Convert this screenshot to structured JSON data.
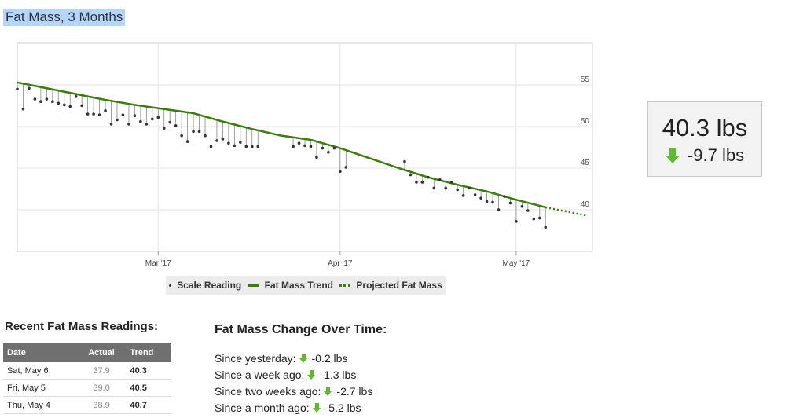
{
  "page": {
    "title": "Fat Mass, 3 Months"
  },
  "stat": {
    "value": "40.3 lbs",
    "change": "-9.7 lbs",
    "direction": "down"
  },
  "legend": {
    "scale_reading": "Scale Reading",
    "trend": "Fat Mass Trend",
    "projected": "Projected Fat Mass"
  },
  "recent": {
    "title": "Recent Fat Mass Readings:",
    "columns": [
      "Date",
      "Actual",
      "Trend"
    ],
    "rows": [
      {
        "date": "Sat, May 6",
        "actual": "37.9",
        "trend": "40.3"
      },
      {
        "date": "Fri, May 5",
        "actual": "39.0",
        "trend": "40.5"
      },
      {
        "date": "Thu, May 4",
        "actual": "38.9",
        "trend": "40.7"
      }
    ]
  },
  "change": {
    "title": "Fat Mass Change Over Time:",
    "items": [
      {
        "label": "Since yesterday:",
        "value": "-0.2 lbs"
      },
      {
        "label": "Since a week ago:",
        "value": "-1.3 lbs"
      },
      {
        "label": "Since two weeks ago:",
        "value": "-2.7 lbs"
      },
      {
        "label": "Since a month ago:",
        "value": "-5.2 lbs"
      }
    ]
  },
  "colors": {
    "trend": "#3a7d0a",
    "arrow_down": "#5fb82f",
    "card_bg": "#f3f3f3",
    "readings": "#333333"
  },
  "chart_data": {
    "type": "line",
    "title": "Fat Mass, 3 Months",
    "xlabel": "",
    "ylabel": "",
    "x_ticks": [
      "Mar '17",
      "Apr '17",
      "May '17"
    ],
    "y_ticks": [
      40,
      45,
      50,
      55
    ],
    "ylim": [
      35,
      60
    ],
    "xlim": [
      "2017-02-05",
      "2017-05-14"
    ],
    "grid": true,
    "legend_position": "bottom",
    "series": [
      {
        "name": "Fat Mass Trend",
        "style": "solid",
        "x": [
          "2017-02-05",
          "2017-02-10",
          "2017-02-15",
          "2017-02-20",
          "2017-02-25",
          "2017-03-02",
          "2017-03-07",
          "2017-03-12",
          "2017-03-17",
          "2017-03-22",
          "2017-03-27",
          "2017-04-01",
          "2017-04-06",
          "2017-04-11",
          "2017-04-16",
          "2017-04-21",
          "2017-04-26",
          "2017-05-01",
          "2017-05-06"
        ],
        "values": [
          55.3,
          54.6,
          53.9,
          53.2,
          52.6,
          52.1,
          51.6,
          50.6,
          49.7,
          48.9,
          48.4,
          47.4,
          46.2,
          45.0,
          43.9,
          43.0,
          42.2,
          41.2,
          40.3
        ]
      },
      {
        "name": "Projected Fat Mass",
        "style": "dotted",
        "x": [
          "2017-05-06",
          "2017-05-13"
        ],
        "values": [
          40.3,
          39.3
        ]
      },
      {
        "name": "Scale Reading",
        "style": "points",
        "x": [
          "2017-02-05",
          "2017-02-06",
          "2017-02-07",
          "2017-02-08",
          "2017-02-09",
          "2017-02-10",
          "2017-02-11",
          "2017-02-12",
          "2017-02-13",
          "2017-02-14",
          "2017-02-15",
          "2017-02-16",
          "2017-02-17",
          "2017-02-18",
          "2017-02-19",
          "2017-02-20",
          "2017-02-21",
          "2017-02-22",
          "2017-02-23",
          "2017-02-24",
          "2017-02-25",
          "2017-02-26",
          "2017-02-27",
          "2017-02-28",
          "2017-03-01",
          "2017-03-02",
          "2017-03-03",
          "2017-03-04",
          "2017-03-05",
          "2017-03-06",
          "2017-03-07",
          "2017-03-08",
          "2017-03-09",
          "2017-03-10",
          "2017-03-11",
          "2017-03-12",
          "2017-03-13",
          "2017-03-14",
          "2017-03-15",
          "2017-03-16",
          "2017-03-17",
          "2017-03-18",
          "2017-03-24",
          "2017-03-25",
          "2017-03-26",
          "2017-03-27",
          "2017-03-28",
          "2017-03-29",
          "2017-03-30",
          "2017-03-31",
          "2017-04-01",
          "2017-04-02",
          "2017-04-12",
          "2017-04-13",
          "2017-04-14",
          "2017-04-15",
          "2017-04-16",
          "2017-04-17",
          "2017-04-18",
          "2017-04-19",
          "2017-04-20",
          "2017-04-21",
          "2017-04-22",
          "2017-04-23",
          "2017-04-24",
          "2017-04-25",
          "2017-04-26",
          "2017-04-27",
          "2017-04-28",
          "2017-04-29",
          "2017-04-30",
          "2017-05-01",
          "2017-05-02",
          "2017-05-03",
          "2017-05-04",
          "2017-05-05",
          "2017-05-06"
        ],
        "values": [
          54.5,
          52.1,
          54.6,
          53.3,
          53.0,
          53.3,
          53.0,
          52.8,
          52.6,
          52.4,
          53.6,
          52.5,
          51.5,
          51.5,
          51.4,
          51.9,
          50.3,
          50.8,
          51.4,
          50.3,
          51.3,
          50.6,
          50.3,
          50.9,
          51.1,
          49.8,
          50.5,
          50.1,
          48.9,
          48.2,
          49.4,
          49.4,
          48.9,
          47.6,
          48.3,
          48.5,
          48.0,
          47.7,
          48.1,
          47.6,
          47.6,
          47.6,
          47.6,
          48.0,
          47.7,
          47.6,
          46.3,
          47.4,
          46.9,
          47.4,
          44.6,
          45.1,
          45.8,
          44.2,
          43.3,
          43.3,
          43.9,
          42.6,
          43.6,
          42.6,
          43.3,
          42.4,
          41.7,
          42.6,
          41.8,
          41.4,
          41.0,
          40.9,
          40.0,
          41.6,
          40.8,
          38.6,
          40.4,
          39.9,
          38.9,
          39.0,
          37.9
        ]
      }
    ]
  }
}
